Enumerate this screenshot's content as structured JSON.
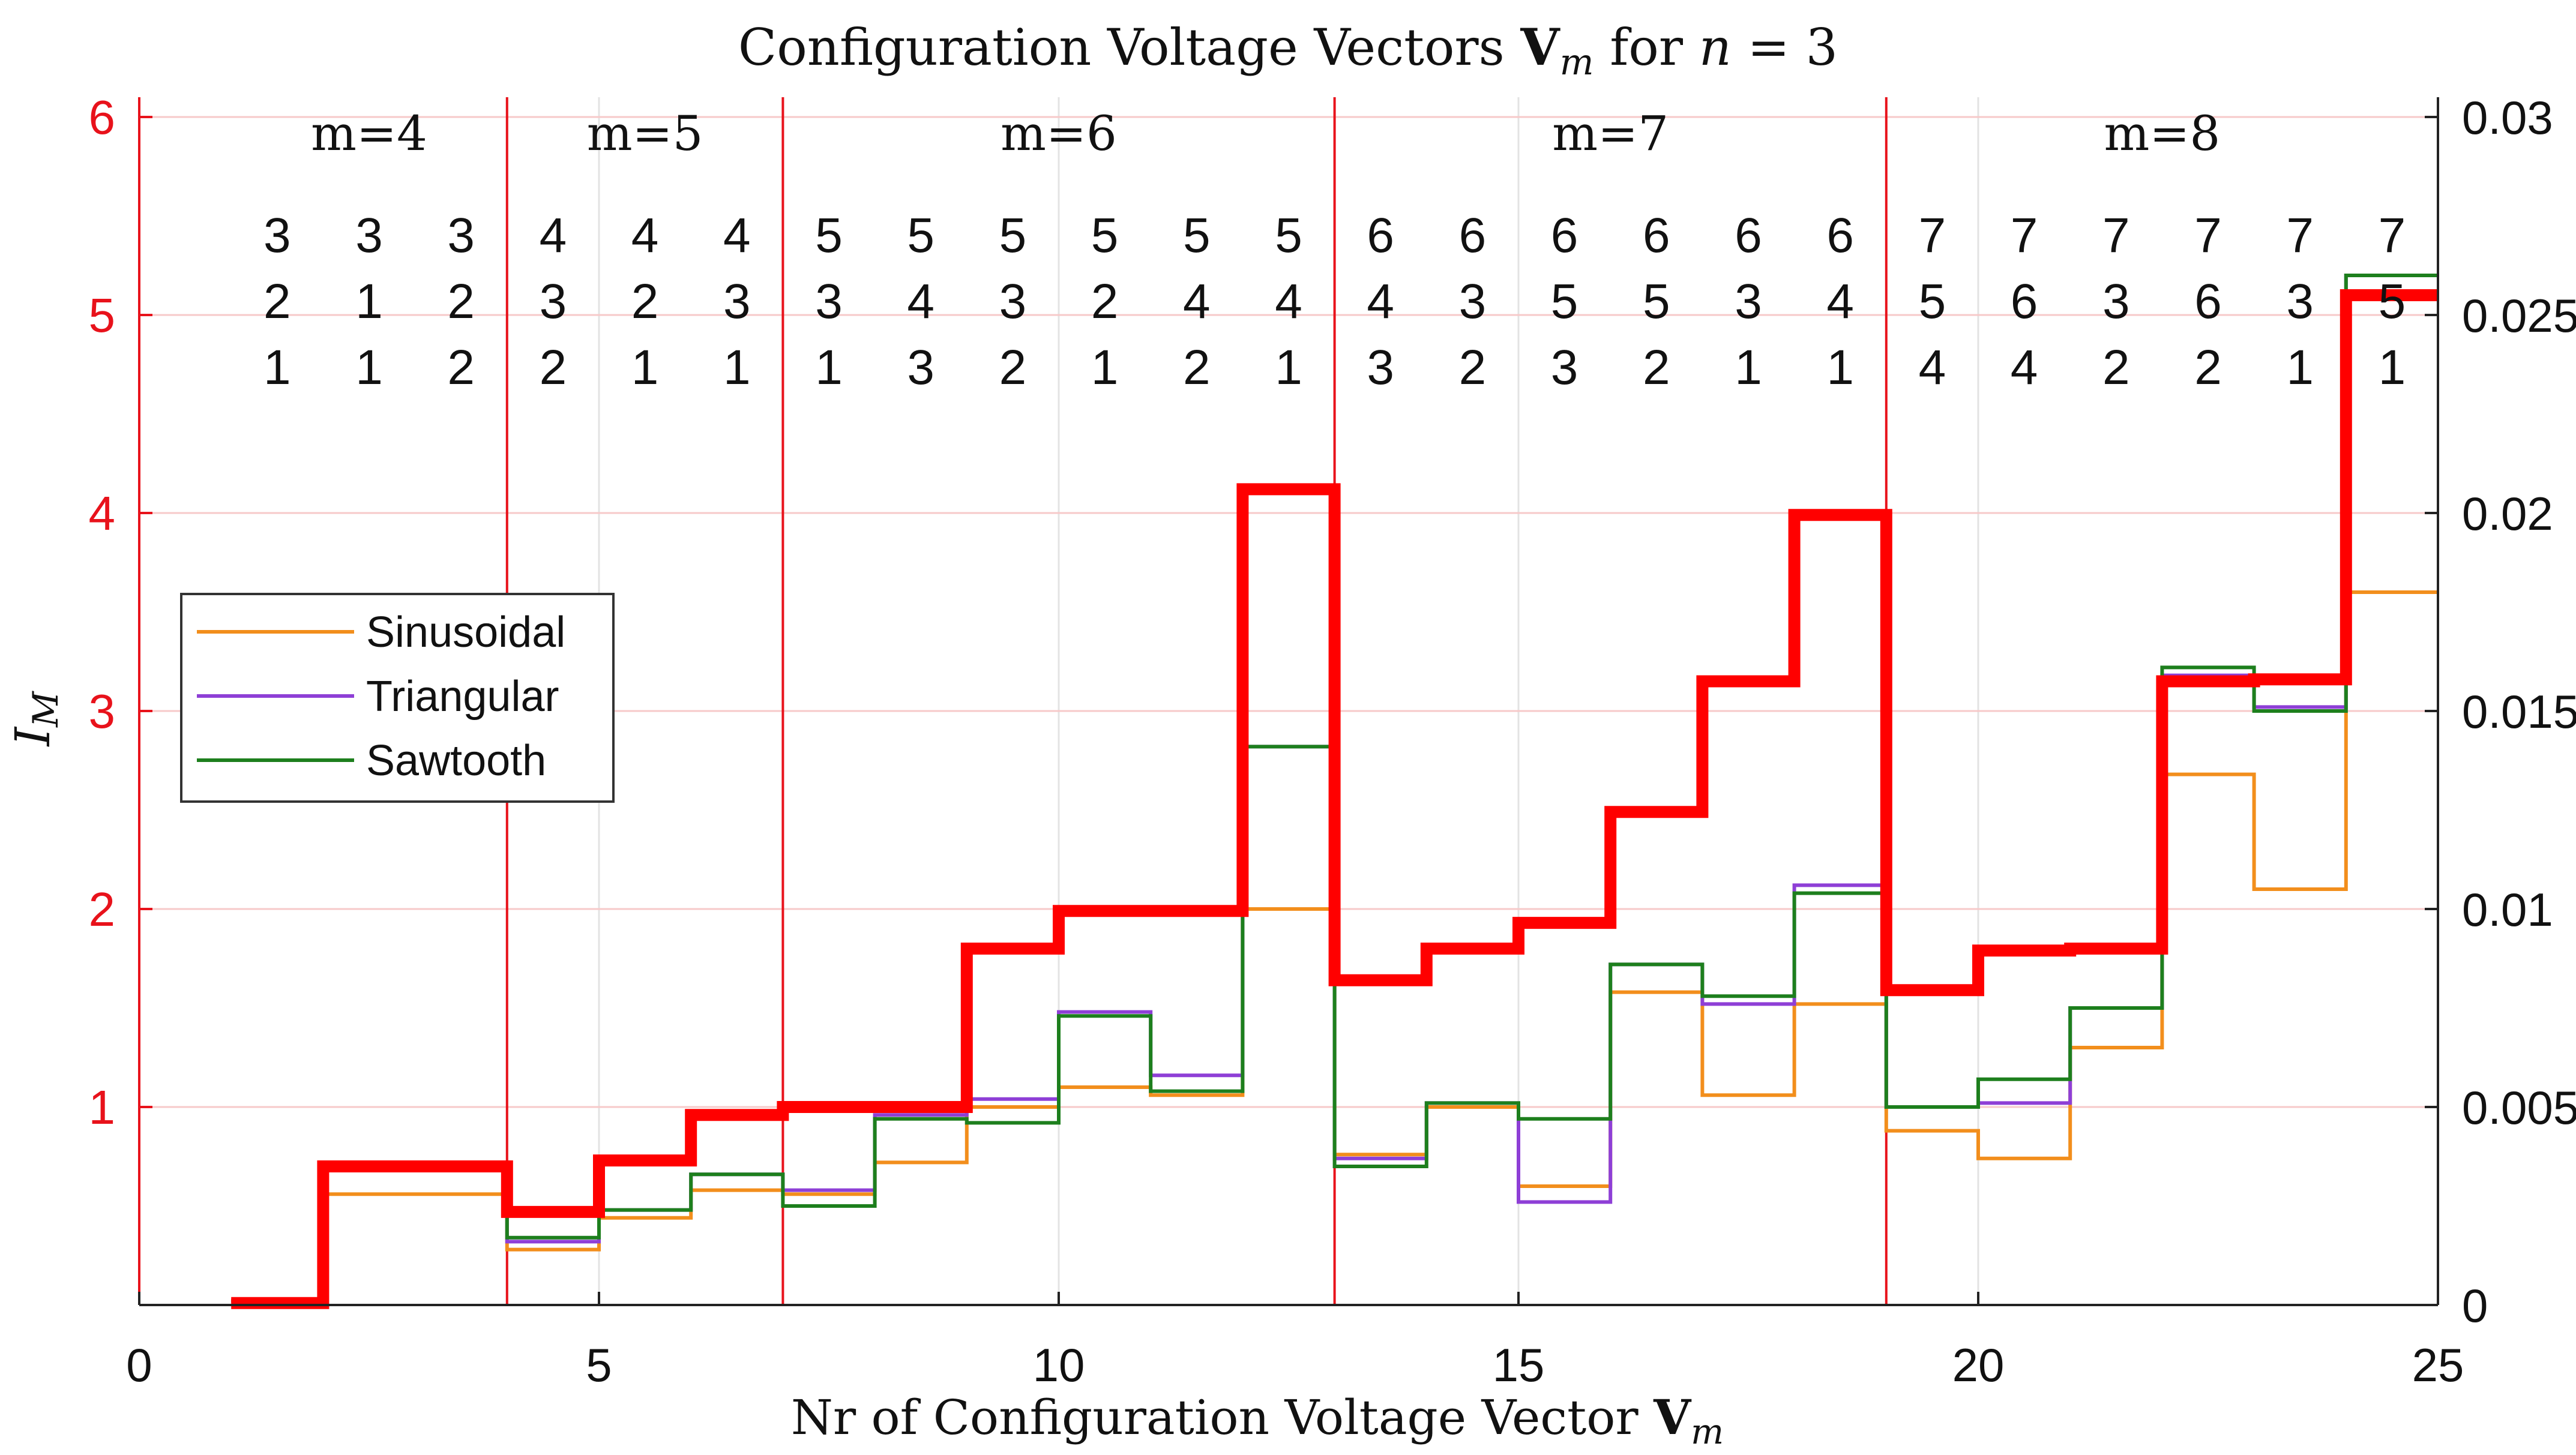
{
  "chart_data": {
    "type": "line",
    "title": "Configuration Voltage Vectors V_m for n = 3",
    "title_parts": {
      "prefix": "Configuration Voltage Vectors ",
      "bold": "V",
      "sub": "m",
      "middle": " for ",
      "var": "n",
      "suffix": " = 3"
    },
    "xlabel": "Nr of Configuration Voltage Vector V_m",
    "xlabel_parts": {
      "prefix": "Nr of Configuration Voltage Vector ",
      "bold": "V",
      "sub": "m"
    },
    "ylabel": "I_M",
    "ylabel_parts": {
      "main": "I",
      "sub": "M"
    },
    "xlim": [
      0,
      25
    ],
    "ylim_left": [
      0,
      6.1
    ],
    "ylim_right": [
      0,
      0.0305
    ],
    "x_ticks": [
      "0",
      "5",
      "10",
      "15",
      "20",
      "25"
    ],
    "x_tick_values": [
      0,
      5,
      10,
      15,
      20,
      25
    ],
    "y_left_ticks": [
      "1",
      "2",
      "3",
      "4",
      "5",
      "6"
    ],
    "y_left_tick_values": [
      1,
      2,
      3,
      4,
      5,
      6
    ],
    "y_right_ticks": [
      "0",
      "0.005",
      "0.01",
      "0.015",
      "0.02",
      "0.025",
      "0.03"
    ],
    "y_right_tick_values": [
      0,
      0.005,
      0.01,
      0.015,
      0.02,
      0.025,
      0.03
    ],
    "grid": true,
    "legend_position": "middle-left",
    "group_boundaries": [
      4,
      7,
      13,
      19
    ],
    "groups": [
      {
        "label": "m=4",
        "center": 2.5
      },
      {
        "label": "m=5",
        "center": 5.5
      },
      {
        "label": "m=6",
        "center": 10
      },
      {
        "label": "m=7",
        "center": 16
      },
      {
        "label": "m=8",
        "center": 22
      }
    ],
    "vectors": [
      [
        "3",
        "2",
        "1"
      ],
      [
        "3",
        "1",
        "1"
      ],
      [
        "3",
        "2",
        "2"
      ],
      [
        "4",
        "3",
        "2"
      ],
      [
        "4",
        "2",
        "1"
      ],
      [
        "4",
        "3",
        "1"
      ],
      [
        "5",
        "3",
        "1"
      ],
      [
        "5",
        "4",
        "3"
      ],
      [
        "5",
        "3",
        "2"
      ],
      [
        "5",
        "2",
        "1"
      ],
      [
        "5",
        "4",
        "2"
      ],
      [
        "5",
        "4",
        "1"
      ],
      [
        "6",
        "4",
        "3"
      ],
      [
        "6",
        "3",
        "2"
      ],
      [
        "6",
        "5",
        "3"
      ],
      [
        "6",
        "5",
        "2"
      ],
      [
        "6",
        "3",
        "1"
      ],
      [
        "6",
        "4",
        "1"
      ],
      [
        "7",
        "5",
        "4"
      ],
      [
        "7",
        "6",
        "4"
      ],
      [
        "7",
        "3",
        "2"
      ],
      [
        "7",
        "6",
        "2"
      ],
      [
        "7",
        "3",
        "1"
      ],
      [
        "7",
        "5",
        "1"
      ]
    ],
    "vector_x": [
      1.5,
      2.5,
      3.5,
      4.5,
      5.5,
      6.5,
      7.5,
      8.5,
      9.5,
      10.5,
      11.5,
      12.5,
      13.5,
      14.5,
      15.5,
      16.5,
      17.5,
      18.5,
      19.5,
      20.5,
      21.5,
      22.5,
      23.5,
      24.5
    ],
    "step_x": [
      1,
      2,
      3,
      4,
      5,
      6,
      7,
      8,
      9,
      10,
      11,
      12,
      13,
      14,
      15,
      16,
      17,
      18,
      19,
      20,
      21,
      22,
      23,
      24,
      25
    ],
    "series": [
      {
        "name": "Sinusoidal",
        "axis": "right",
        "color": "#f28e1c",
        "width": 6,
        "values": [
          0.0001,
          0.0028,
          0.0028,
          0.0014,
          0.0022,
          0.0029,
          0.0028,
          0.0036,
          0.005,
          0.0055,
          0.0053,
          0.01,
          0.0038,
          0.005,
          0.003,
          0.0079,
          0.0053,
          0.0076,
          0.0044,
          0.0037,
          0.0065,
          0.0134,
          0.0105,
          0.018
        ]
      },
      {
        "name": "Triangular",
        "axis": "right",
        "color": "#8e3fd6",
        "width": 6,
        "values": [
          0.0001,
          0.0036,
          0.0036,
          0.0016,
          0.0024,
          0.0033,
          0.0029,
          0.0048,
          0.0052,
          0.0074,
          0.0058,
          0.0141,
          0.0037,
          0.0051,
          0.0026,
          0.0086,
          0.0076,
          0.0106,
          0.005,
          0.0051,
          0.0075,
          0.0159,
          0.0151,
          0.026
        ]
      },
      {
        "name": "Sawtooth",
        "axis": "right",
        "color": "#1d7f1d",
        "width": 6,
        "values": [
          0.0001,
          0.0036,
          0.0036,
          0.0017,
          0.0024,
          0.0033,
          0.0025,
          0.0047,
          0.0046,
          0.0073,
          0.0054,
          0.0141,
          0.0035,
          0.0051,
          0.0047,
          0.0086,
          0.0078,
          0.0104,
          0.005,
          0.0057,
          0.0075,
          0.0161,
          0.015,
          0.026
        ]
      },
      {
        "name": "",
        "axis": "left",
        "color": "#ff0000",
        "width": 20,
        "values": [
          0.01,
          0.7,
          0.7,
          0.47,
          0.73,
          0.96,
          1.0,
          1.0,
          1.8,
          1.99,
          1.99,
          4.12,
          1.64,
          1.8,
          1.93,
          2.49,
          3.15,
          3.99,
          1.59,
          1.79,
          1.8,
          3.15,
          3.16,
          5.1
        ]
      }
    ],
    "legend_entries": [
      "Sinusoidal",
      "Triangular",
      "Sawtooth"
    ]
  }
}
